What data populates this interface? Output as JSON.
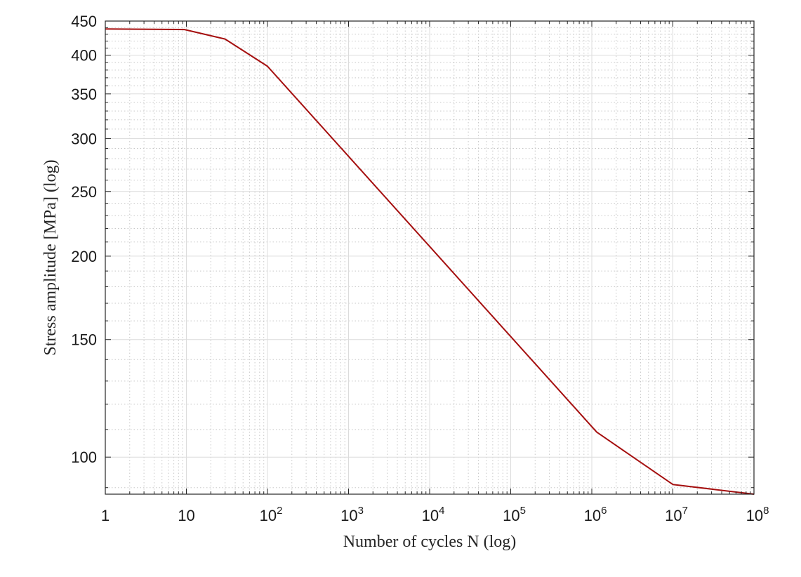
{
  "chart_data": {
    "type": "line",
    "title": "",
    "xlabel": "Number of cycles N (log)",
    "ylabel": "Stress amplitude [MPa] (log)",
    "x_scale": "log",
    "y_scale": "log",
    "xlim": [
      1,
      100000000
    ],
    "ylim": [
      88,
      450
    ],
    "grid": true,
    "x_ticks": [
      {
        "value": 1,
        "base": "1",
        "exp": ""
      },
      {
        "value": 10,
        "base": "10",
        "exp": ""
      },
      {
        "value": 100,
        "base": "10",
        "exp": "2"
      },
      {
        "value": 1000,
        "base": "10",
        "exp": "3"
      },
      {
        "value": 10000,
        "base": "10",
        "exp": "4"
      },
      {
        "value": 100000,
        "base": "10",
        "exp": "5"
      },
      {
        "value": 1000000,
        "base": "10",
        "exp": "6"
      },
      {
        "value": 10000000,
        "base": "10",
        "exp": "7"
      },
      {
        "value": 100000000,
        "base": "10",
        "exp": "8"
      }
    ],
    "y_ticks": [
      {
        "value": 100,
        "label": "100"
      },
      {
        "value": 150,
        "label": "150"
      },
      {
        "value": 200,
        "label": "200"
      },
      {
        "value": 250,
        "label": "250"
      },
      {
        "value": 300,
        "label": "300"
      },
      {
        "value": 350,
        "label": "350"
      },
      {
        "value": 400,
        "label": "400"
      },
      {
        "value": 450,
        "label": "450"
      }
    ],
    "series": [
      {
        "color": "#a50f0f",
        "x": [
          1,
          9.5,
          30,
          100,
          1150000,
          10000000,
          100000000
        ],
        "y": [
          438,
          437,
          423,
          385,
          109,
          91,
          88
        ]
      }
    ]
  }
}
